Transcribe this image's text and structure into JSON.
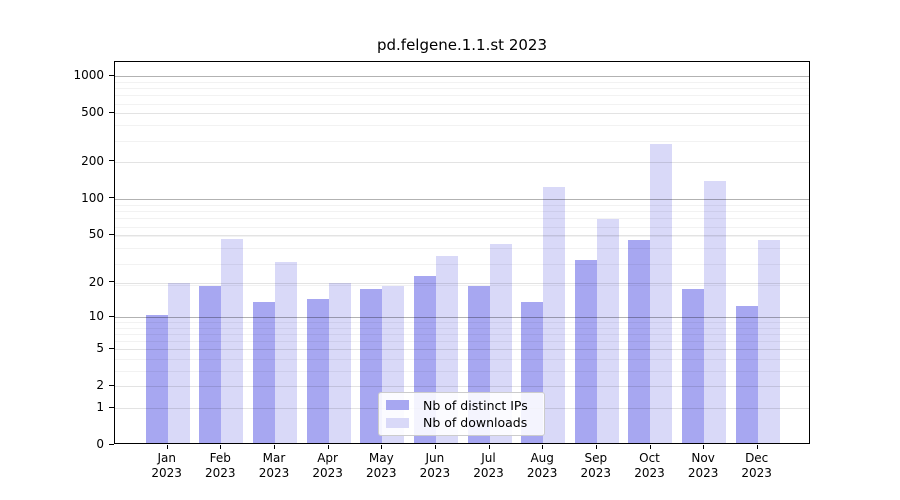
{
  "title": "pd.felgene.1.1.st 2023",
  "legend": {
    "items": [
      {
        "label": "Nb of distinct IPs",
        "color": "#a7a7f1"
      },
      {
        "label": "Nb of downloads",
        "color": "#d9d9f8"
      }
    ]
  },
  "chart_data": {
    "type": "bar",
    "title": "pd.felgene.1.1.st 2023",
    "months": [
      "Jan",
      "Feb",
      "Mar",
      "Apr",
      "May",
      "Jun",
      "Jul",
      "Aug",
      "Sep",
      "Oct",
      "Nov",
      "Dec"
    ],
    "year": "2023",
    "categories": [
      "Jan 2023",
      "Feb 2023",
      "Mar 2023",
      "Apr 2023",
      "May 2023",
      "Jun 2023",
      "Jul 2023",
      "Aug 2023",
      "Sep 2023",
      "Oct 2023",
      "Nov 2023",
      "Dec 2023"
    ],
    "series": [
      {
        "name": "Nb of distinct IPs",
        "color": "#a7a7f1",
        "values": [
          10,
          18,
          13,
          14,
          17,
          22,
          18,
          13,
          30,
          44,
          17,
          12
        ]
      },
      {
        "name": "Nb of downloads",
        "color": "#d9d9f8",
        "values": [
          19,
          45,
          29,
          19,
          18,
          32,
          41,
          120,
          66,
          270,
          135,
          44
        ]
      }
    ],
    "yscale": "log1p",
    "ylim": [
      0,
      1280
    ],
    "y_ticks": [
      1000,
      500,
      200,
      100,
      50,
      20,
      10,
      5,
      2,
      1,
      0
    ],
    "y_major_emphasis": [
      1000,
      100,
      10
    ],
    "y_minor_gridlines": [
      3,
      4,
      6,
      7,
      8,
      9,
      19,
      29,
      39,
      49,
      59,
      69,
      79,
      89,
      299,
      399,
      599,
      699,
      799,
      899
    ],
    "grid": "horizontal",
    "legend_position": "lower center"
  }
}
